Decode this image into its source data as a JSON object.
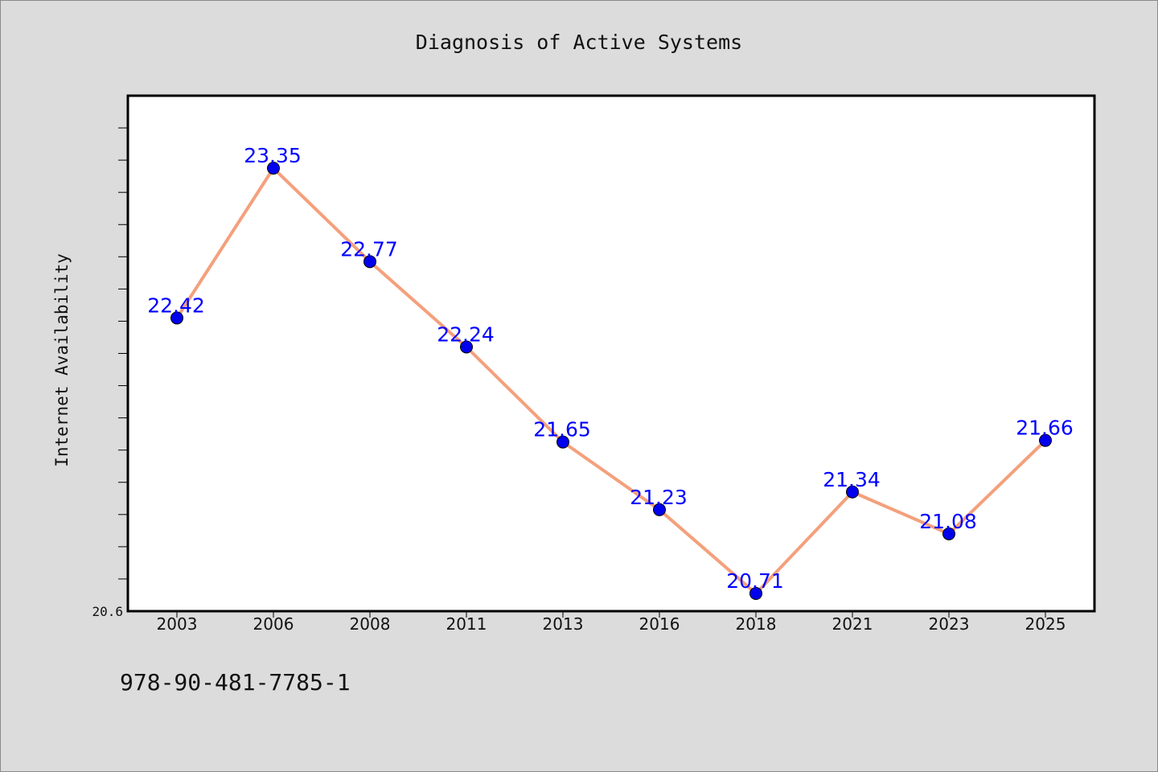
{
  "footer": {
    "code": "978-90-481-7785-1"
  },
  "chart_data": {
    "type": "line",
    "title": "Diagnosis of Active Systems",
    "xlabel": "",
    "ylabel": "Internet Availability",
    "categories": [
      "2003",
      "2006",
      "2008",
      "2011",
      "2013",
      "2016",
      "2018",
      "2021",
      "2023",
      "2025"
    ],
    "series": [
      {
        "values": [
          22.42,
          23.35,
          22.77,
          22.24,
          21.65,
          21.23,
          20.71,
          21.34,
          21.08,
          21.66
        ]
      }
    ],
    "data_labels": [
      "22.42",
      "23.35",
      "22.77",
      "22.24",
      "21.65",
      "21.23",
      "20.71",
      "21.34",
      "21.08",
      "21.66"
    ],
    "ylim": [
      20.6,
      23.8
    ],
    "y_tick_labels": [
      {
        "value": 20.6,
        "label": "20.6"
      }
    ],
    "y_minor_step": 0.2,
    "grid": false,
    "legend": "none",
    "colors": {
      "line": "#f4a07c",
      "marker": "#0000ee",
      "data_label": "#0000ff",
      "plot_bg": "#ffffff",
      "page_bg": "#dcdcdc"
    }
  }
}
